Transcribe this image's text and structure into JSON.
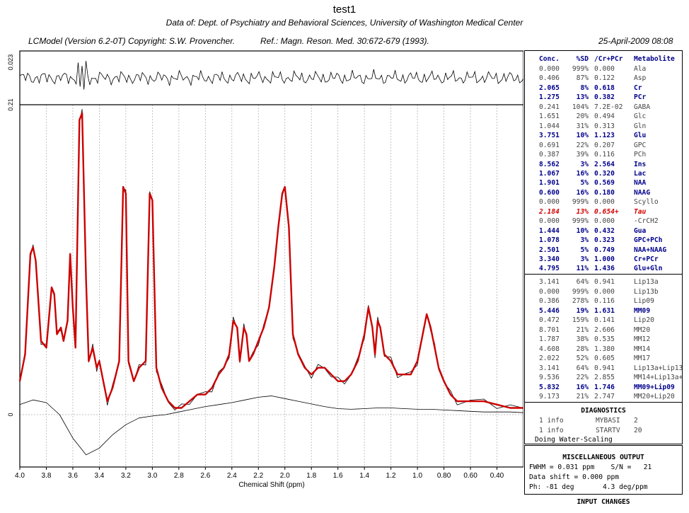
{
  "header": {
    "title": "test1",
    "subtitle": "Data of: Dept. of Psychiatry and Behavioral Sciences, University of Washington Medical Center",
    "program": "LCModel (Version 6.2-0T) Copyright: S.W. Provencher.",
    "reference": "Ref.: Magn. Reson. Med. 30:672-679 (1993).",
    "date": "25-April-2009  08:08"
  },
  "chart_data": {
    "type": "line",
    "xlabel": "Chemical Shift (ppm)",
    "x_range": [
      4.0,
      0.2
    ],
    "x_ticks": [
      "4.0",
      "3.8",
      "3.6",
      "3.4",
      "3.2",
      "3.0",
      "2.8",
      "2.6",
      "2.4",
      "2.2",
      "2.0",
      "1.8",
      "1.6",
      "1.4",
      "1.2",
      "1.0",
      "0.80",
      "0.60",
      "0.40"
    ],
    "y_labels": {
      "residual_top": "0.023",
      "residual_bottom": "0.21",
      "baseline_zero": "0"
    },
    "grid": true,
    "series": [
      {
        "style": "thin black",
        "x": [
          4.0,
          3.96,
          3.92,
          3.9,
          3.88,
          3.84,
          3.8,
          3.76,
          3.74,
          3.72,
          3.69,
          3.67,
          3.64,
          3.62,
          3.6,
          3.58,
          3.55,
          3.53,
          3.5,
          3.48,
          3.45,
          3.42,
          3.4,
          3.37,
          3.34,
          3.3,
          3.25,
          3.22,
          3.2,
          3.18,
          3.14,
          3.1,
          3.05,
          3.02,
          3.0,
          2.97,
          2.93,
          2.88,
          2.83,
          2.78,
          2.72,
          2.66,
          2.6,
          2.55,
          2.5,
          2.46,
          2.42,
          2.39,
          2.36,
          2.34,
          2.31,
          2.29,
          2.27,
          2.24,
          2.2,
          2.16,
          2.12,
          2.08,
          2.05,
          2.02,
          2.0,
          1.97,
          1.94,
          1.9,
          1.85,
          1.8,
          1.75,
          1.7,
          1.65,
          1.6,
          1.55,
          1.5,
          1.45,
          1.4,
          1.37,
          1.34,
          1.32,
          1.3,
          1.28,
          1.25,
          1.2,
          1.15,
          1.1,
          1.05,
          1.0,
          0.96,
          0.93,
          0.9,
          0.87,
          0.84,
          0.8,
          0.75,
          0.7,
          0.6,
          0.5,
          0.4,
          0.3,
          0.2
        ],
        "y": [
          0.05,
          0.09,
          0.24,
          0.25,
          0.23,
          0.11,
          0.1,
          0.19,
          0.18,
          0.12,
          0.13,
          0.11,
          0.14,
          0.24,
          0.16,
          0.1,
          0.44,
          0.45,
          0.2,
          0.08,
          0.1,
          0.07,
          0.08,
          0.05,
          0.02,
          0.04,
          0.08,
          0.34,
          0.33,
          0.08,
          0.05,
          0.07,
          0.08,
          0.33,
          0.32,
          0.07,
          0.04,
          0.02,
          0.01,
          0.01,
          0.02,
          0.03,
          0.03,
          0.04,
          0.06,
          0.07,
          0.09,
          0.14,
          0.13,
          0.08,
          0.13,
          0.12,
          0.08,
          0.09,
          0.11,
          0.13,
          0.16,
          0.22,
          0.28,
          0.33,
          0.34,
          0.28,
          0.12,
          0.09,
          0.07,
          0.06,
          0.07,
          0.07,
          0.06,
          0.05,
          0.05,
          0.06,
          0.08,
          0.12,
          0.16,
          0.13,
          0.09,
          0.14,
          0.13,
          0.09,
          0.08,
          0.06,
          0.06,
          0.06,
          0.08,
          0.12,
          0.15,
          0.13,
          0.1,
          0.07,
          0.05,
          0.03,
          0.02,
          0.02,
          0.02,
          0.015,
          0.01,
          0.01
        ]
      },
      {
        "style": "thick red",
        "x": [
          4.0,
          3.96,
          3.92,
          3.9,
          3.88,
          3.84,
          3.8,
          3.76,
          3.74,
          3.72,
          3.69,
          3.67,
          3.64,
          3.62,
          3.6,
          3.58,
          3.55,
          3.53,
          3.5,
          3.48,
          3.45,
          3.42,
          3.4,
          3.37,
          3.34,
          3.3,
          3.25,
          3.22,
          3.2,
          3.18,
          3.14,
          3.1,
          3.05,
          3.02,
          3.0,
          2.97,
          2.93,
          2.88,
          2.83,
          2.78,
          2.72,
          2.66,
          2.6,
          2.55,
          2.5,
          2.46,
          2.42,
          2.39,
          2.36,
          2.34,
          2.31,
          2.29,
          2.27,
          2.24,
          2.2,
          2.16,
          2.12,
          2.08,
          2.05,
          2.02,
          2.0,
          1.97,
          1.94,
          1.9,
          1.85,
          1.8,
          1.75,
          1.7,
          1.65,
          1.6,
          1.55,
          1.5,
          1.45,
          1.4,
          1.37,
          1.34,
          1.32,
          1.3,
          1.28,
          1.25,
          1.2,
          1.15,
          1.1,
          1.05,
          1.0,
          0.96,
          0.93,
          0.9,
          0.87,
          0.84,
          0.8,
          0.75,
          0.7,
          0.6,
          0.5,
          0.4,
          0.3,
          0.2
        ],
        "y": [
          0.05,
          0.09,
          0.24,
          0.25,
          0.23,
          0.11,
          0.1,
          0.19,
          0.18,
          0.12,
          0.13,
          0.11,
          0.14,
          0.24,
          0.16,
          0.1,
          0.44,
          0.45,
          0.2,
          0.08,
          0.1,
          0.07,
          0.08,
          0.05,
          0.02,
          0.04,
          0.08,
          0.34,
          0.33,
          0.08,
          0.05,
          0.07,
          0.08,
          0.33,
          0.32,
          0.07,
          0.04,
          0.02,
          0.01,
          0.01,
          0.02,
          0.03,
          0.03,
          0.04,
          0.06,
          0.07,
          0.09,
          0.14,
          0.13,
          0.08,
          0.13,
          0.12,
          0.08,
          0.09,
          0.11,
          0.13,
          0.16,
          0.22,
          0.28,
          0.33,
          0.34,
          0.28,
          0.12,
          0.09,
          0.07,
          0.06,
          0.07,
          0.07,
          0.06,
          0.05,
          0.05,
          0.06,
          0.08,
          0.12,
          0.16,
          0.13,
          0.09,
          0.14,
          0.13,
          0.09,
          0.08,
          0.06,
          0.06,
          0.06,
          0.08,
          0.12,
          0.15,
          0.13,
          0.1,
          0.07,
          0.05,
          0.03,
          0.02,
          0.02,
          0.02,
          0.015,
          0.01,
          0.01
        ]
      },
      {
        "style": "thin black",
        "x": [
          4.0,
          3.9,
          3.8,
          3.7,
          3.6,
          3.5,
          3.4,
          3.3,
          3.2,
          3.1,
          3.0,
          2.9,
          2.8,
          2.7,
          2.6,
          2.5,
          2.4,
          2.3,
          2.2,
          2.1,
          2.0,
          1.9,
          1.8,
          1.7,
          1.6,
          1.5,
          1.4,
          1.3,
          1.2,
          1.1,
          1.0,
          0.9,
          0.8,
          0.7,
          0.6,
          0.5,
          0.4,
          0.3,
          0.2
        ],
        "y": [
          0.015,
          0.022,
          0.018,
          0.0,
          -0.035,
          -0.06,
          -0.05,
          -0.03,
          -0.015,
          -0.005,
          -0.002,
          0.0,
          0.004,
          0.008,
          0.012,
          0.015,
          0.018,
          0.022,
          0.026,
          0.028,
          0.024,
          0.02,
          0.016,
          0.012,
          0.009,
          0.008,
          0.009,
          0.01,
          0.01,
          0.009,
          0.008,
          0.008,
          0.007,
          0.006,
          0.005,
          0.004,
          0.004,
          0.004,
          0.003
        ]
      }
    ]
  },
  "metabolites": {
    "header": [
      "Conc.",
      "%SD",
      "/Cr+PCr",
      "Metabolite"
    ],
    "rows": [
      {
        "conc": "0.000",
        "sd": "999%",
        "ratio": "0.000",
        "name": "Ala",
        "style": "normal"
      },
      {
        "conc": "0.406",
        "sd": "87%",
        "ratio": "0.122",
        "name": "Asp",
        "style": "normal"
      },
      {
        "conc": "2.065",
        "sd": "8%",
        "ratio": "0.618",
        "name": "Cr",
        "style": "bold"
      },
      {
        "conc": "1.275",
        "sd": "13%",
        "ratio": "0.382",
        "name": "PCr",
        "style": "bold"
      },
      {
        "conc": "0.241",
        "sd": "104%",
        "ratio": "7.2E-02",
        "name": "GABA",
        "style": "normal"
      },
      {
        "conc": "1.651",
        "sd": "20%",
        "ratio": "0.494",
        "name": "Glc",
        "style": "normal"
      },
      {
        "conc": "1.044",
        "sd": "31%",
        "ratio": "0.313",
        "name": "Gln",
        "style": "normal"
      },
      {
        "conc": "3.751",
        "sd": "10%",
        "ratio": "1.123",
        "name": "Glu",
        "style": "bold"
      },
      {
        "conc": "0.691",
        "sd": "22%",
        "ratio": "0.207",
        "name": "GPC",
        "style": "normal"
      },
      {
        "conc": "0.387",
        "sd": "39%",
        "ratio": "0.116",
        "name": "PCh",
        "style": "normal"
      },
      {
        "conc": "8.562",
        "sd": "3%",
        "ratio": "2.564",
        "name": "Ins",
        "style": "bold"
      },
      {
        "conc": "1.067",
        "sd": "16%",
        "ratio": "0.320",
        "name": "Lac",
        "style": "bold"
      },
      {
        "conc": "1.901",
        "sd": "5%",
        "ratio": "0.569",
        "name": "NAA",
        "style": "bold"
      },
      {
        "conc": "0.600",
        "sd": "16%",
        "ratio": "0.180",
        "name": "NAAG",
        "style": "bold"
      },
      {
        "conc": "0.000",
        "sd": "999%",
        "ratio": "0.000",
        "name": "Scyllo",
        "style": "normal"
      },
      {
        "conc": "2.184",
        "sd": "13%",
        "ratio": "0.654+",
        "name": "Tau",
        "style": "red"
      },
      {
        "conc": "0.000",
        "sd": "999%",
        "ratio": "0.000",
        "name": "-CrCH2",
        "style": "normal"
      },
      {
        "conc": "1.444",
        "sd": "10%",
        "ratio": "0.432",
        "name": "Gua",
        "style": "bold"
      },
      {
        "conc": "1.078",
        "sd": "3%",
        "ratio": "0.323",
        "name": "GPC+PCh",
        "style": "bold"
      },
      {
        "conc": "2.501",
        "sd": "5%",
        "ratio": "0.749",
        "name": "NAA+NAAG",
        "style": "bold"
      },
      {
        "conc": "3.340",
        "sd": "3%",
        "ratio": "1.000",
        "name": "Cr+PCr",
        "style": "bold"
      },
      {
        "conc": "4.795",
        "sd": "11%",
        "ratio": "1.436",
        "name": "Glu+Gln",
        "style": "bold"
      }
    ]
  },
  "lipids": {
    "rows": [
      {
        "conc": "3.141",
        "sd": "64%",
        "ratio": "0.941",
        "name": "Lip13a",
        "style": "normal"
      },
      {
        "conc": "0.000",
        "sd": "999%",
        "ratio": "0.000",
        "name": "Lip13b",
        "style": "normal"
      },
      {
        "conc": "0.386",
        "sd": "278%",
        "ratio": "0.116",
        "name": "Lip09",
        "style": "normal"
      },
      {
        "conc": "5.446",
        "sd": "19%",
        "ratio": "1.631",
        "name": "MM09",
        "style": "bold"
      },
      {
        "conc": "0.472",
        "sd": "159%",
        "ratio": "0.141",
        "name": "Lip20",
        "style": "normal"
      },
      {
        "conc": "8.701",
        "sd": "21%",
        "ratio": "2.606",
        "name": "MM20",
        "style": "normal"
      },
      {
        "conc": "1.787",
        "sd": "38%",
        "ratio": "0.535",
        "name": "MM12",
        "style": "normal"
      },
      {
        "conc": "4.608",
        "sd": "28%",
        "ratio": "1.380",
        "name": "MM14",
        "style": "normal"
      },
      {
        "conc": "2.022",
        "sd": "52%",
        "ratio": "0.605",
        "name": "MM17",
        "style": "normal"
      },
      {
        "conc": "3.141",
        "sd": "64%",
        "ratio": "0.941",
        "name": "Lip13a+Lip13b",
        "style": "normal"
      },
      {
        "conc": "9.536",
        "sd": "22%",
        "ratio": "2.855",
        "name": "MM14+Lip13a+L",
        "style": "normal"
      },
      {
        "conc": "5.832",
        "sd": "16%",
        "ratio": "1.746",
        "name": "MM09+Lip09",
        "style": "bold"
      },
      {
        "conc": "9.173",
        "sd": "21%",
        "ratio": "2.747",
        "name": "MM20+Lip20",
        "style": "normal"
      }
    ]
  },
  "diagnostics": {
    "title": "DIAGNOSTICS",
    "rows": [
      {
        "count": "1 info",
        "code": "MYBASI",
        "num": "2"
      },
      {
        "count": "1 info",
        "code": "STARTV",
        "num": "20"
      }
    ],
    "note": "Doing Water-Scaling"
  },
  "misc": {
    "title": "MISCELLANEOUS OUTPUT",
    "lines": [
      "FWHM = 0.031 ppm    S/N =   21",
      "Data shift = 0.000 ppm",
      "Ph: -81 deg       4.3 deg/ppm"
    ]
  },
  "input_changes": "INPUT CHANGES"
}
